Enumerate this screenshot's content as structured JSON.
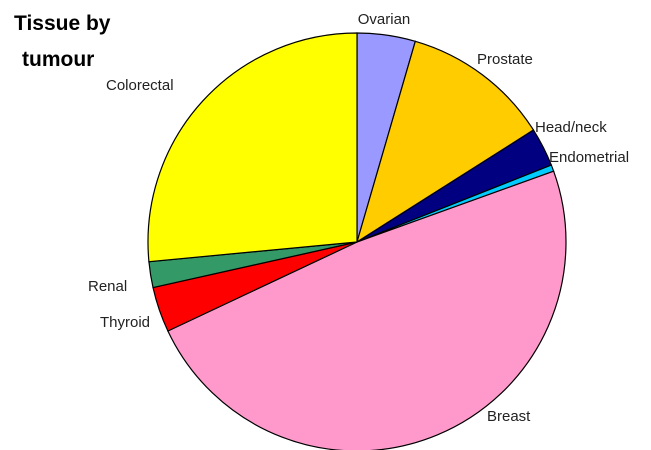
{
  "chart_data": {
    "type": "pie",
    "title_lines": [
      "Tissue by",
      "tumour"
    ],
    "start_angle_deg": 0,
    "direction": "clockwise",
    "slices": [
      {
        "label": "Ovarian",
        "value": 4.5,
        "color": "#9999ff"
      },
      {
        "label": "Prostate",
        "value": 11.5,
        "color": "#ffcc00"
      },
      {
        "label": "Head/neck",
        "value": 3.0,
        "color": "#000080"
      },
      {
        "label": "Endometrial",
        "value": 0.5,
        "color": "#00ccff"
      },
      {
        "label": "Breast",
        "value": 48.5,
        "color": "#ff99cc"
      },
      {
        "label": "Thyroid",
        "value": 3.5,
        "color": "#ff0000"
      },
      {
        "label": "Renal",
        "value": 2.0,
        "color": "#339966"
      },
      {
        "label": "Colorectal",
        "value": 26.5,
        "color": "#ffff00"
      }
    ]
  }
}
